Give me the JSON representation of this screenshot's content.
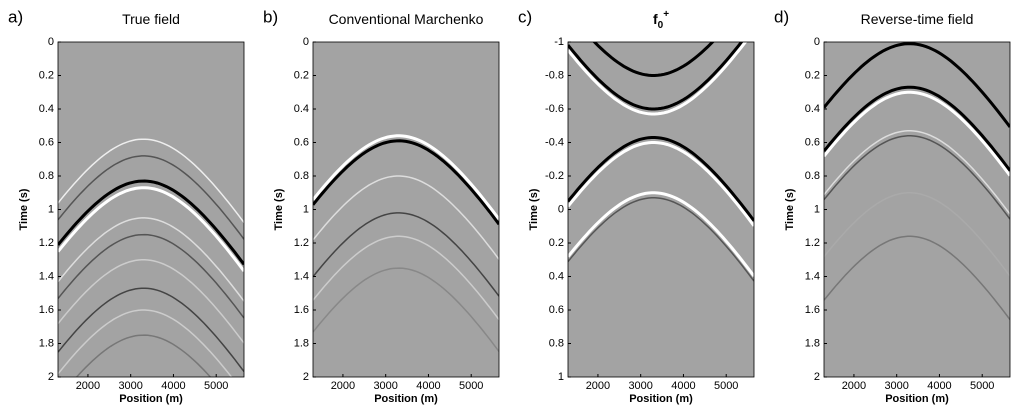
{
  "chart_data": [
    {
      "type": "image",
      "panel": "a)",
      "title": "True field",
      "xlabel": "Position (m)",
      "ylabel": "Time (s)",
      "xlim": [
        1300,
        5650
      ],
      "xticks": [
        2000,
        3000,
        4000,
        5000
      ],
      "ylim": [
        0,
        2
      ],
      "yticks": [
        0,
        0.2,
        0.4,
        0.6,
        0.8,
        1,
        1.2,
        1.4,
        1.6,
        1.8,
        2
      ]
    },
    {
      "type": "image",
      "panel": "b)",
      "title": "Conventional Marchenko",
      "xlabel": "Position (m)",
      "ylabel": "Time (s)",
      "xlim": [
        1300,
        5650
      ],
      "xticks": [
        2000,
        3000,
        4000,
        5000
      ],
      "ylim": [
        0,
        2
      ],
      "yticks": [
        0,
        0.2,
        0.4,
        0.6,
        0.8,
        1,
        1.2,
        1.4,
        1.6,
        1.8,
        2
      ]
    },
    {
      "type": "image",
      "panel": "c)",
      "title": "f",
      "title_subscript": "0",
      "title_superscript": "+",
      "xlabel": "Position (m)",
      "ylabel": "Time (s)",
      "xlim": [
        1300,
        5650
      ],
      "xticks": [
        2000,
        3000,
        4000,
        5000
      ],
      "ylim": [
        -1,
        1
      ],
      "yticks": [
        -1,
        -0.8,
        -0.6,
        -0.4,
        -0.2,
        0,
        0.2,
        0.4,
        0.6,
        0.8,
        1
      ]
    },
    {
      "type": "image",
      "panel": "d)",
      "title": "Reverse-time field",
      "xlabel": "Position (m)",
      "ylabel": "Time (s)",
      "xlim": [
        1300,
        5650
      ],
      "xticks": [
        2000,
        3000,
        4000,
        5000
      ],
      "ylim": [
        0,
        2
      ],
      "yticks": [
        0,
        0.2,
        0.4,
        0.6,
        0.8,
        1,
        1.2,
        1.4,
        1.6,
        1.8,
        2
      ]
    }
  ]
}
